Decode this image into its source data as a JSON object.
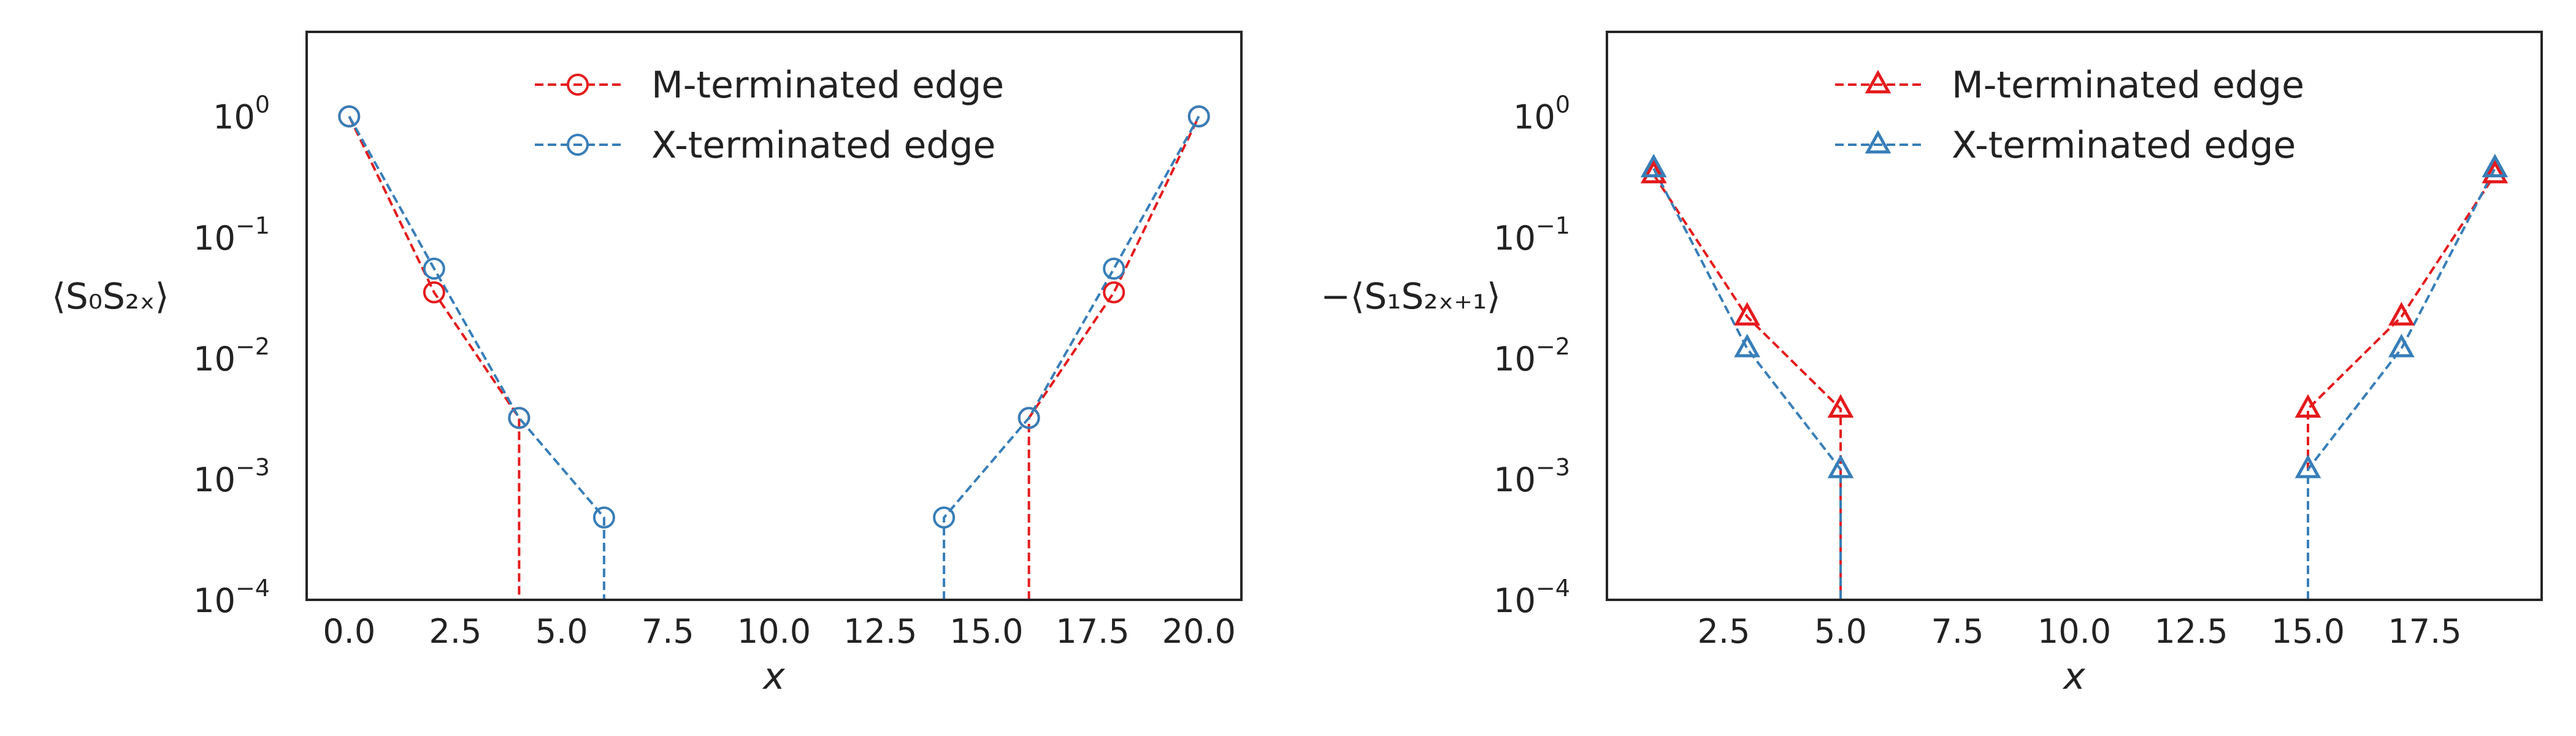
{
  "chart_data": [
    {
      "type": "line",
      "title": "",
      "xlabel": "x",
      "ylabel": "⟨S₀S₂ₓ⟩",
      "yscale": "log",
      "xlim": [
        -1.0,
        21.0
      ],
      "ylim": [
        0.0001,
        5
      ],
      "xticks": [
        "0.0",
        "2.5",
        "5.0",
        "7.5",
        "10.0",
        "12.5",
        "15.0",
        "17.5",
        "20.0"
      ],
      "xtick_values": [
        0,
        2.5,
        5,
        7.5,
        10,
        12.5,
        15,
        17.5,
        20
      ],
      "yticks": [
        {
          "value": 1,
          "base": "10",
          "exp": "0"
        },
        {
          "value": 0.1,
          "base": "10",
          "exp": "−1"
        },
        {
          "value": 0.01,
          "base": "10",
          "exp": "−2"
        },
        {
          "value": 0.001,
          "base": "10",
          "exp": "−3"
        },
        {
          "value": 0.0001,
          "base": "10",
          "exp": "−4"
        }
      ],
      "grid": false,
      "legend_position": "top-center",
      "marker": "circle",
      "series": [
        {
          "name": "M-terminated edge",
          "color": "#e41a1c",
          "left": {
            "x": [
              0,
              2,
              4,
              4
            ],
            "y": [
              1.0,
              0.035,
              0.0032,
              0.0001
            ]
          },
          "right": {
            "x": [
              16,
              16,
              18,
              20
            ],
            "y": [
              0.0001,
              0.0032,
              0.035,
              1.0
            ]
          },
          "marker_x": [
            0,
            2,
            4,
            16,
            18,
            20
          ]
        },
        {
          "name": "X-terminated edge",
          "color": "#377eb8",
          "left": {
            "x": [
              0,
              2,
              4,
              6,
              6
            ],
            "y": [
              1.0,
              0.055,
              0.0032,
              0.00048,
              0.0001
            ]
          },
          "right": {
            "x": [
              14,
              14,
              16,
              18,
              20
            ],
            "y": [
              0.0001,
              0.00048,
              0.0032,
              0.055,
              1.0
            ]
          },
          "marker_x": [
            0,
            2,
            4,
            6,
            14,
            16,
            18,
            20
          ]
        }
      ]
    },
    {
      "type": "line",
      "title": "",
      "xlabel": "x",
      "ylabel": "−⟨S₁S₂ₓ₊₁⟩",
      "yscale": "log",
      "xlim": [
        0.0,
        20.0
      ],
      "ylim": [
        0.0001,
        5
      ],
      "xticks": [
        "2.5",
        "5.0",
        "7.5",
        "10.0",
        "12.5",
        "15.0",
        "17.5"
      ],
      "xtick_values": [
        2.5,
        5,
        7.5,
        10,
        12.5,
        15,
        17.5
      ],
      "yticks": [
        {
          "value": 1,
          "base": "10",
          "exp": "0"
        },
        {
          "value": 0.1,
          "base": "10",
          "exp": "−1"
        },
        {
          "value": 0.01,
          "base": "10",
          "exp": "−2"
        },
        {
          "value": 0.001,
          "base": "10",
          "exp": "−3"
        },
        {
          "value": 0.0001,
          "base": "10",
          "exp": "−4"
        }
      ],
      "grid": false,
      "legend_position": "top-center",
      "marker": "triangle",
      "series": [
        {
          "name": "M-terminated edge",
          "color": "#e41a1c",
          "left": {
            "x": [
              1,
              3,
              5,
              5
            ],
            "y": [
              0.33,
              0.022,
              0.0038,
              0.0001
            ]
          },
          "right": {
            "x": [
              15,
              15,
              17,
              19
            ],
            "y": [
              0.0001,
              0.0038,
              0.022,
              0.33
            ]
          },
          "marker_x": [
            1,
            3,
            5,
            15,
            17,
            19
          ]
        },
        {
          "name": "X-terminated edge",
          "color": "#377eb8",
          "left": {
            "x": [
              1,
              3,
              5,
              5
            ],
            "y": [
              0.37,
              0.012,
              0.0012,
              0.0001
            ]
          },
          "right": {
            "x": [
              15,
              15,
              17,
              19
            ],
            "y": [
              0.0001,
              0.0012,
              0.012,
              0.37
            ]
          },
          "marker_x": [
            1,
            3,
            5,
            15,
            17,
            19
          ]
        }
      ]
    }
  ]
}
